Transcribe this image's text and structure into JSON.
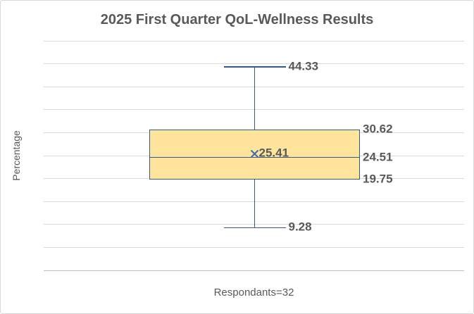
{
  "chart_data": {
    "type": "boxplot",
    "title": "2025 First Quarter QoL-Wellness Results",
    "ylabel": "Percentage",
    "category_label": "Respondants=32",
    "ylim": [
      0,
      50
    ],
    "grid_step": 5,
    "grid": true,
    "legend": false,
    "series": [
      {
        "whisker_max": 44.33,
        "q3": 30.62,
        "mean": 25.41,
        "median": 24.51,
        "q1": 19.75,
        "whisker_min": 9.28
      }
    ],
    "data_labels": {
      "max": "44.33",
      "q3": "30.62",
      "mean": "25.41",
      "median": "24.51",
      "q1": "19.75",
      "min": "9.28"
    },
    "colors": {
      "box_fill": "#FFE59B",
      "box_border": "#2E5B8F",
      "whisker": "#2E5B8F",
      "mean_marker": "#3E68AE",
      "gridline": "#D9D9D9",
      "axis_line": "#BFBFBF",
      "text": "#595959"
    }
  }
}
